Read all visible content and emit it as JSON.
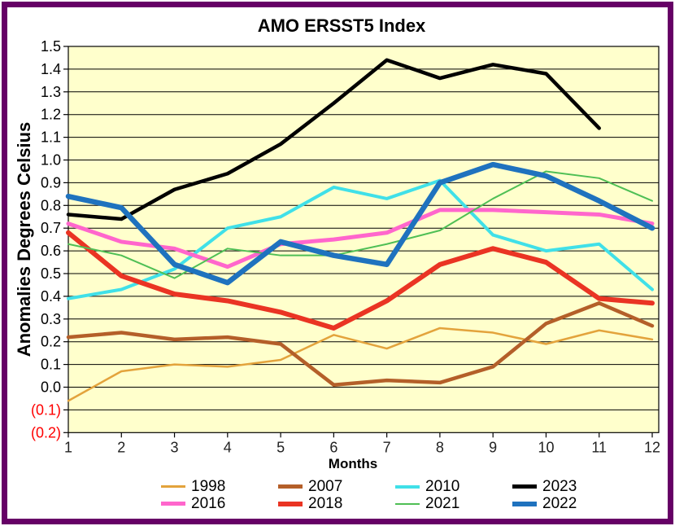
{
  "window": {
    "frame_color": "#660066",
    "background": "#FFFFFF"
  },
  "chart_data": {
    "type": "line",
    "title": "AMO ERSST5 Index",
    "xlabel": "Months",
    "ylabel": "Anomalies Degrees Celsius",
    "plot_bg": "#FFFFCC",
    "grid": true,
    "gridline_color": "#000000",
    "ylim": [
      -0.2,
      1.5
    ],
    "y_tick_step": 0.1,
    "y_tick_labels": [
      "1.5",
      "1.4",
      "1.3",
      "1.2",
      "1.1",
      "1.0",
      "0.9",
      "0.8",
      "0.7",
      "0.6",
      "0.5",
      "0.4",
      "0.3",
      "0.2",
      "0.1",
      "0.0",
      "(0.1)",
      "(0.2)"
    ],
    "y_tick_color_positive": "#000000",
    "y_tick_color_negative": "#FF0000",
    "x": [
      1,
      2,
      3,
      4,
      5,
      6,
      7,
      8,
      9,
      10,
      11,
      12
    ],
    "x_tick_labels": [
      "1",
      "2",
      "3",
      "4",
      "5",
      "6",
      "7",
      "8",
      "9",
      "10",
      "11",
      "12"
    ],
    "x_tick_color": "#222222",
    "legend_position": "bottom",
    "legend_rows": 2,
    "series": [
      {
        "name": "1998",
        "color": "#E3A33C",
        "width": 2.5,
        "values": [
          -0.06,
          0.07,
          0.1,
          0.09,
          0.12,
          0.23,
          0.17,
          0.26,
          0.24,
          0.19,
          0.25,
          0.21
        ]
      },
      {
        "name": "2007",
        "color": "#B45F29",
        "width": 4.5,
        "values": [
          0.22,
          0.24,
          0.21,
          0.22,
          0.19,
          0.01,
          0.03,
          0.02,
          0.09,
          0.28,
          0.37,
          0.27
        ]
      },
      {
        "name": "2010",
        "color": "#40E0E8",
        "width": 4,
        "values": [
          0.39,
          0.43,
          0.52,
          0.7,
          0.75,
          0.88,
          0.83,
          0.91,
          0.67,
          0.6,
          0.63,
          0.43
        ]
      },
      {
        "name": "2023",
        "color": "#000000",
        "width": 4.5,
        "values": [
          0.76,
          0.74,
          0.87,
          0.94,
          1.07,
          1.25,
          1.44,
          1.36,
          1.42,
          1.38,
          1.14,
          null
        ]
      },
      {
        "name": "2016",
        "color": "#FF66CC",
        "width": 5,
        "values": [
          0.72,
          0.64,
          0.61,
          0.53,
          0.63,
          0.65,
          0.68,
          0.78,
          0.78,
          0.77,
          0.76,
          0.72
        ]
      },
      {
        "name": "2018",
        "color": "#EA3423",
        "width": 6,
        "values": [
          0.68,
          0.49,
          0.41,
          0.38,
          0.33,
          0.26,
          0.38,
          0.54,
          0.61,
          0.55,
          0.39,
          0.37
        ]
      },
      {
        "name": "2021",
        "color": "#4FBF55",
        "width": 2,
        "values": [
          0.63,
          0.58,
          0.48,
          0.61,
          0.58,
          0.58,
          0.63,
          0.69,
          0.83,
          0.95,
          0.92,
          0.82
        ]
      },
      {
        "name": "2022",
        "color": "#1F72BE",
        "width": 6.5,
        "values": [
          0.84,
          0.79,
          0.54,
          0.46,
          0.64,
          0.58,
          0.54,
          0.9,
          0.98,
          0.93,
          0.82,
          0.7
        ]
      }
    ]
  }
}
